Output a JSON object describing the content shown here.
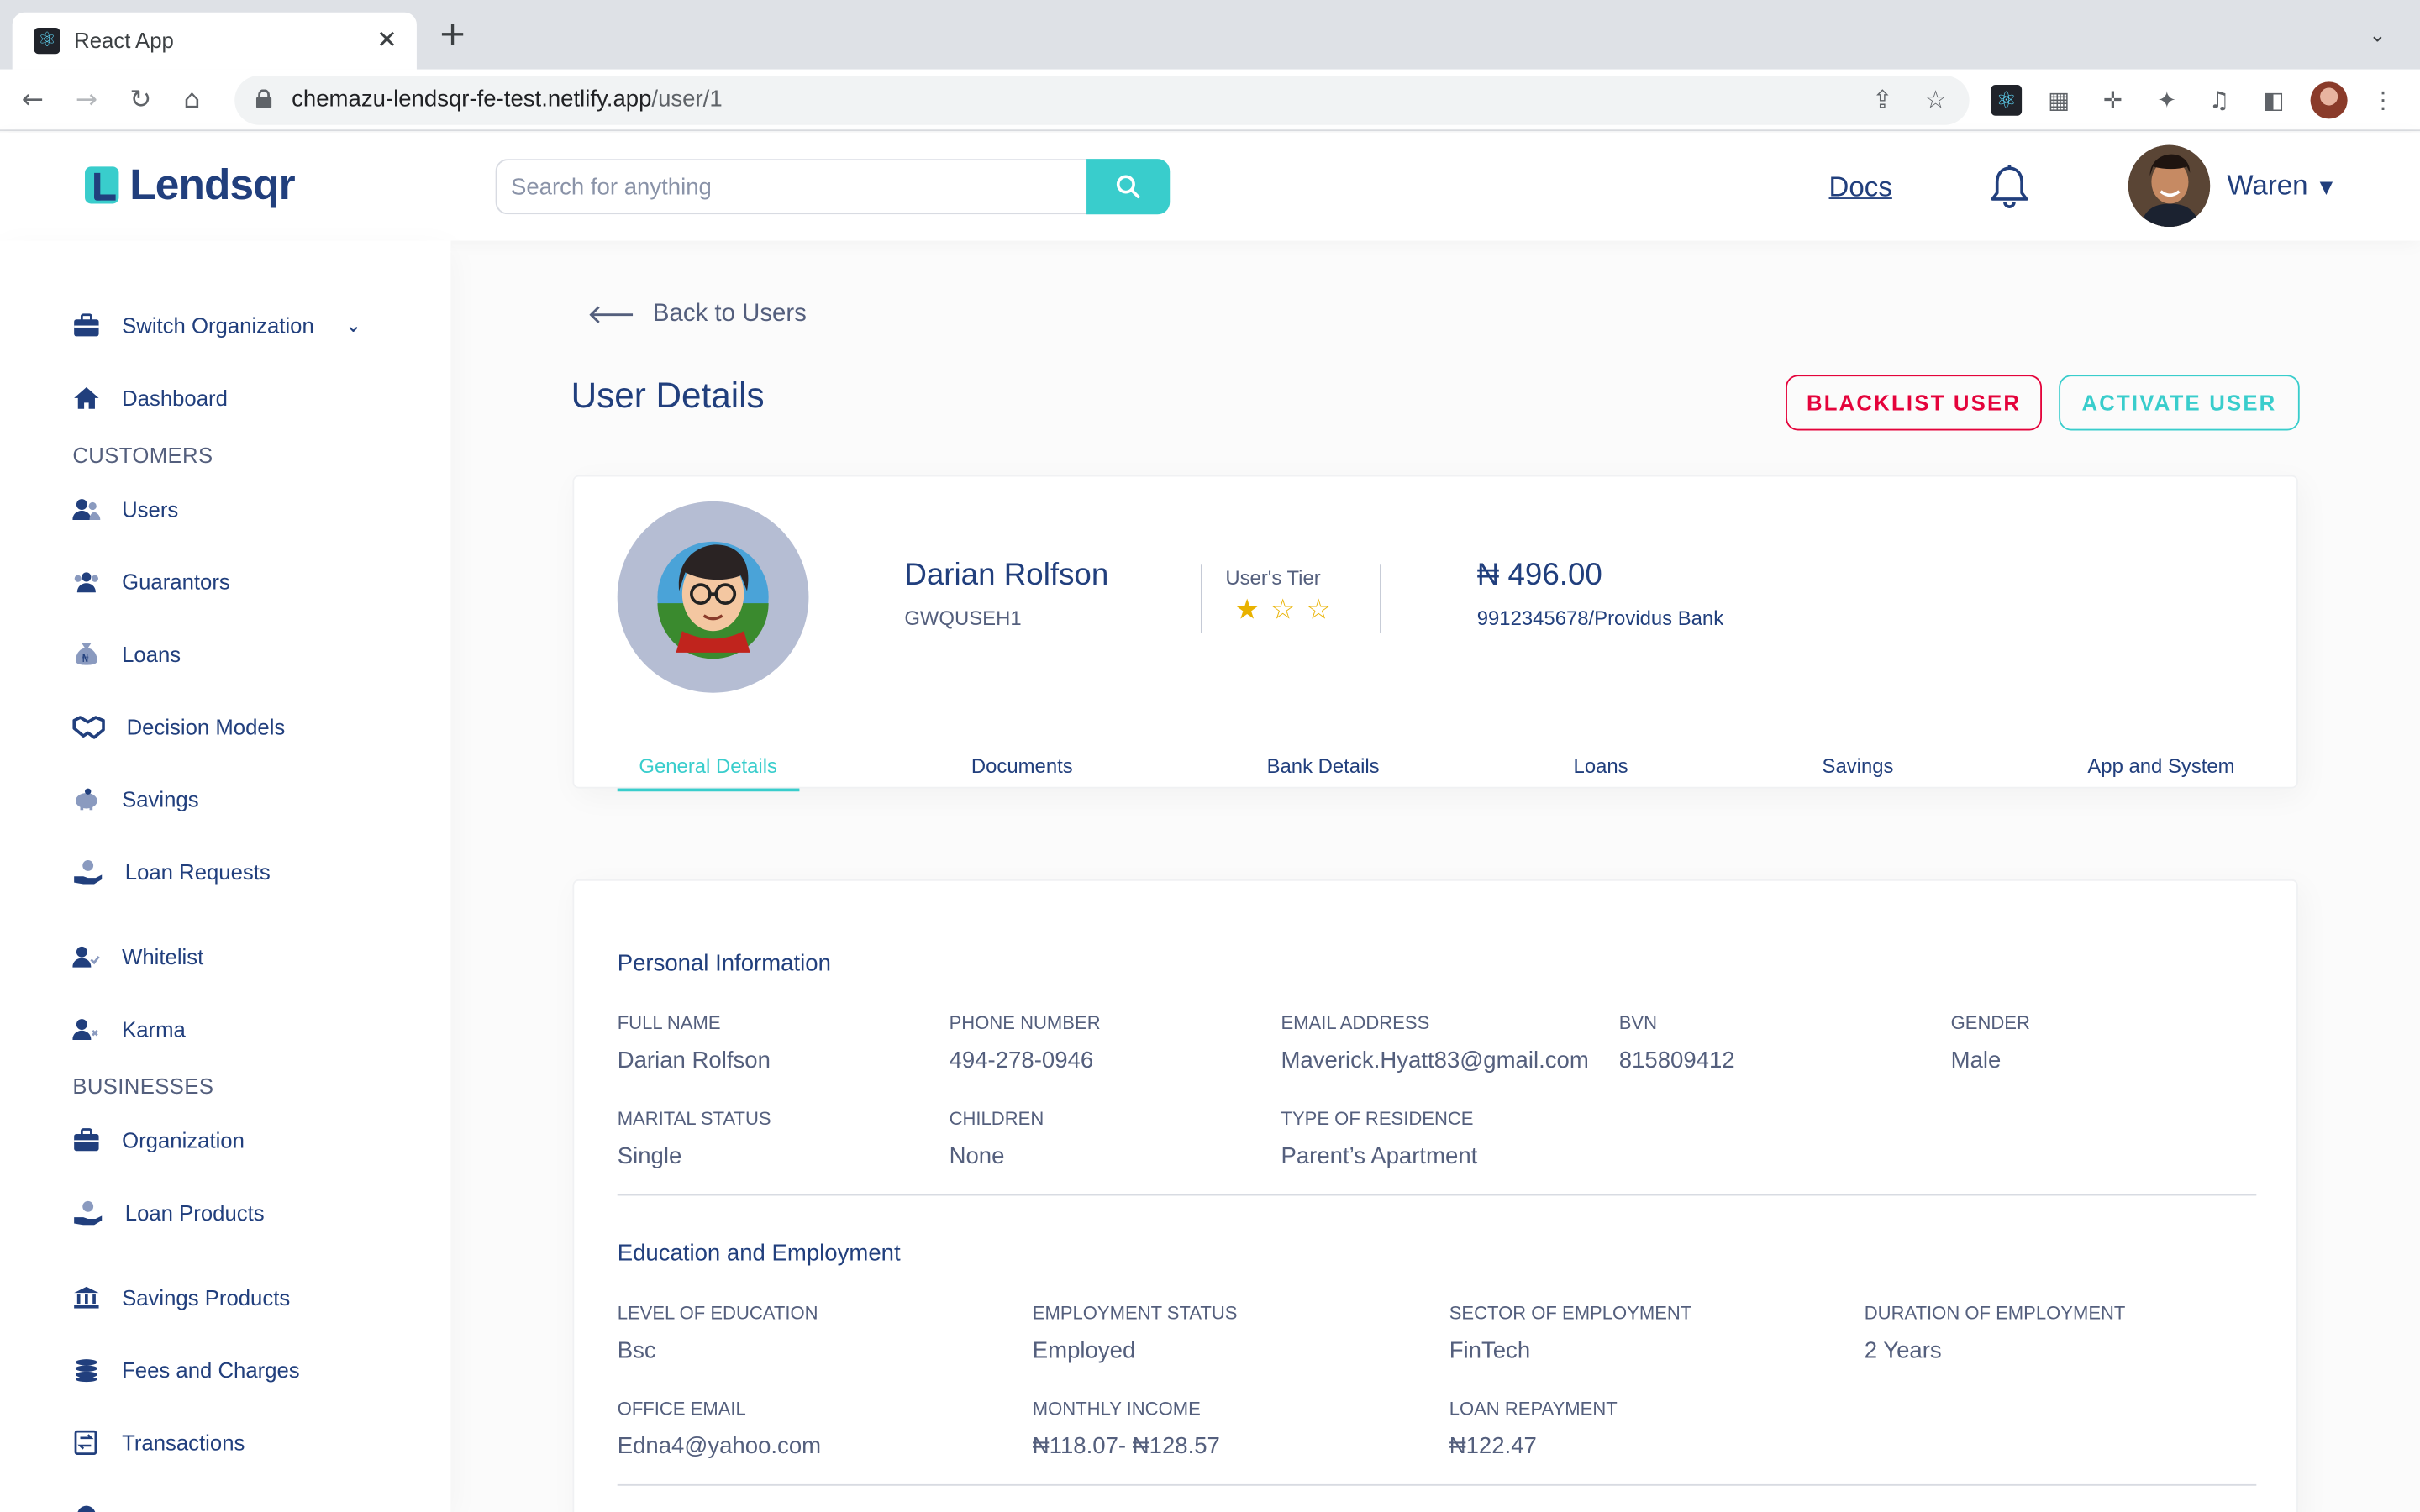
{
  "browser": {
    "tab_title": "React App",
    "url_host": "chemazu-lendsqr-fe-test.netlify.app",
    "url_path": "/user/1"
  },
  "header": {
    "logo_text": "Lendsqr",
    "search_placeholder": "Search for anything",
    "docs_label": "Docs",
    "user_name": "Waren"
  },
  "sidebar": {
    "switch_org": "Switch Organization",
    "dashboard": "Dashboard",
    "customers_heading": "CUSTOMERS",
    "customers": [
      "Users",
      "Guarantors",
      "Loans",
      "Decision Models",
      "Savings",
      "Loan Requests",
      "Whitelist",
      "Karma"
    ],
    "businesses_heading": "BUSINESSES",
    "businesses": [
      "Organization",
      "Loan Products",
      "Savings Products",
      "Fees and Charges",
      "Transactions"
    ]
  },
  "page": {
    "back_label": "Back to Users",
    "title": "User Details",
    "blacklist_label": "BLACKLIST USER",
    "activate_label": "ACTIVATE USER"
  },
  "profile": {
    "name": "Darian Rolfson",
    "code": "GWQUSEH1",
    "tier_label": "User's Tier",
    "tier_stars": 1,
    "tier_max": 3,
    "balance": "₦ 496.00",
    "bank": "9912345678/Providus Bank",
    "tabs": [
      "General Details",
      "Documents",
      "Bank Details",
      "Loans",
      "Savings",
      "App and System"
    ],
    "active_tab": "General Details"
  },
  "personal": {
    "title": "Personal Information",
    "fields": [
      {
        "label": "FULL NAME",
        "value": "Darian Rolfson"
      },
      {
        "label": "PHONE NUMBER",
        "value": "494-278-0946"
      },
      {
        "label": "EMAIL ADDRESS",
        "value": "Maverick.Hyatt83@gmail.com"
      },
      {
        "label": "BVN",
        "value": "815809412"
      },
      {
        "label": "GENDER",
        "value": "Male"
      },
      {
        "label": "MARITAL STATUS",
        "value": "Single"
      },
      {
        "label": "CHILDREN",
        "value": "None"
      },
      {
        "label": "TYPE OF RESIDENCE",
        "value": "Parent’s Apartment"
      }
    ]
  },
  "education": {
    "title": "Education and Employment",
    "fields": [
      {
        "label": "LEVEL OF EDUCATION",
        "value": "Bsc"
      },
      {
        "label": "EMPLOYMENT STATUS",
        "value": "Employed"
      },
      {
        "label": "SECTOR OF EMPLOYMENT",
        "value": "FinTech"
      },
      {
        "label": "DURATION OF EMPLOYMENT",
        "value": "2 Years"
      },
      {
        "label": "OFFICE EMAIL",
        "value": "Edna4@yahoo.com"
      },
      {
        "label": "MONTHLY INCOME",
        "value": "₦118.07- ₦128.57"
      },
      {
        "label": "LOAN REPAYMENT",
        "value": "₦122.47"
      }
    ]
  },
  "colors": {
    "brand": "#213f7d",
    "accent": "#39cdcc",
    "danger": "#e4033b",
    "star": "#e9b200"
  }
}
